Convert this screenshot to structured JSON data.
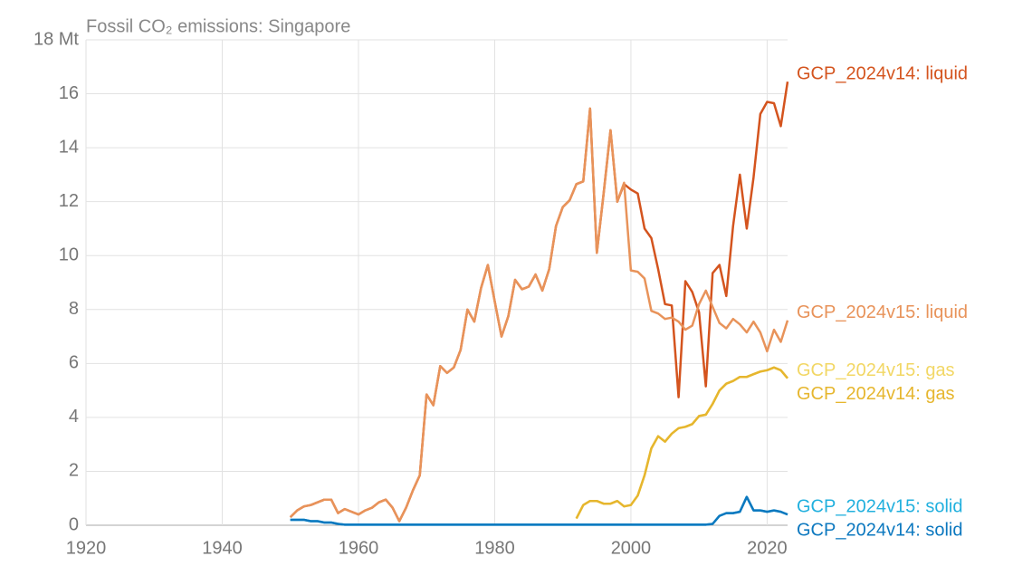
{
  "chart_data": {
    "type": "line",
    "title": "Fossil CO₂ emissions: Singapore",
    "xlim": [
      1920,
      2023
    ],
    "xticks": [
      1920,
      1940,
      1960,
      1980,
      2000,
      2020
    ],
    "ylim": [
      0,
      18
    ],
    "yticks": [
      0,
      2,
      4,
      6,
      8,
      10,
      12,
      14,
      16,
      {
        "value": 18,
        "label": "18 Mt"
      }
    ],
    "grid": true,
    "x": [
      1950,
      1951,
      1952,
      1953,
      1954,
      1955,
      1956,
      1957,
      1958,
      1959,
      1960,
      1961,
      1962,
      1963,
      1964,
      1965,
      1966,
      1967,
      1968,
      1969,
      1970,
      1971,
      1972,
      1973,
      1974,
      1975,
      1976,
      1977,
      1978,
      1979,
      1980,
      1981,
      1982,
      1983,
      1984,
      1985,
      1986,
      1987,
      1988,
      1989,
      1990,
      1991,
      1992,
      1993,
      1994,
      1995,
      1996,
      1997,
      1998,
      1999,
      2000,
      2001,
      2002,
      2003,
      2004,
      2005,
      2006,
      2007,
      2008,
      2009,
      2010,
      2011,
      2012,
      2013,
      2014,
      2015,
      2016,
      2017,
      2018,
      2019,
      2020,
      2021,
      2022,
      2023
    ],
    "series": [
      {
        "name": "GCP_2024v14: liquid",
        "color": "#d4541e",
        "values": [
          0.3,
          0.55,
          0.7,
          0.75,
          0.85,
          0.95,
          0.95,
          0.45,
          0.6,
          0.5,
          0.4,
          0.55,
          0.65,
          0.85,
          0.95,
          0.65,
          0.15,
          0.65,
          1.3,
          1.85,
          4.85,
          4.45,
          5.9,
          5.65,
          5.85,
          6.5,
          8.0,
          7.55,
          8.8,
          9.65,
          8.3,
          7.0,
          7.75,
          9.1,
          8.75,
          8.85,
          9.3,
          8.7,
          9.5,
          11.1,
          11.8,
          12.05,
          12.65,
          12.75,
          15.45,
          10.1,
          12.3,
          14.65,
          12.0,
          12.65,
          12.45,
          12.3,
          11.0,
          10.65,
          9.5,
          8.2,
          8.15,
          4.75,
          9.05,
          8.65,
          7.9,
          5.15,
          9.35,
          9.65,
          8.5,
          11.1,
          13.0,
          11.0,
          12.9,
          15.25,
          15.7,
          15.65,
          14.8,
          16.45
        ]
      },
      {
        "name": "GCP_2024v15: liquid",
        "color": "#e8935a",
        "values": [
          0.3,
          0.55,
          0.7,
          0.75,
          0.85,
          0.95,
          0.95,
          0.45,
          0.6,
          0.5,
          0.4,
          0.55,
          0.65,
          0.85,
          0.95,
          0.65,
          0.15,
          0.65,
          1.3,
          1.85,
          4.85,
          4.45,
          5.9,
          5.65,
          5.85,
          6.5,
          8.0,
          7.55,
          8.8,
          9.65,
          8.3,
          7.0,
          7.75,
          9.1,
          8.75,
          8.85,
          9.3,
          8.7,
          9.5,
          11.1,
          11.8,
          12.05,
          12.65,
          12.75,
          15.45,
          10.1,
          12.3,
          14.65,
          12.0,
          12.7,
          9.45,
          9.4,
          9.15,
          7.95,
          7.85,
          7.65,
          7.7,
          7.55,
          7.25,
          7.4,
          8.2,
          8.7,
          8.1,
          7.5,
          7.3,
          7.65,
          7.45,
          7.15,
          7.55,
          7.15,
          6.45,
          7.25,
          6.8,
          7.6
        ]
      },
      {
        "name": "GCP_2024v15: gas",
        "color": "#f2d765",
        "values": [
          null,
          null,
          null,
          null,
          null,
          null,
          null,
          null,
          null,
          null,
          null,
          null,
          null,
          null,
          null,
          null,
          null,
          null,
          null,
          null,
          null,
          null,
          null,
          null,
          null,
          null,
          null,
          null,
          null,
          null,
          null,
          null,
          null,
          null,
          null,
          null,
          null,
          null,
          null,
          null,
          null,
          null,
          0.25,
          0.75,
          0.9,
          0.9,
          0.8,
          0.8,
          0.9,
          0.7,
          0.75,
          1.1,
          1.85,
          2.85,
          3.3,
          3.1,
          3.4,
          3.6,
          3.65,
          3.75,
          4.05,
          4.1,
          4.5,
          5.0,
          5.25,
          5.35,
          5.5,
          5.5,
          5.6,
          5.7,
          5.75,
          5.85,
          5.75,
          5.45
        ]
      },
      {
        "name": "GCP_2024v14: gas",
        "color": "#e6b62e",
        "values": [
          null,
          null,
          null,
          null,
          null,
          null,
          null,
          null,
          null,
          null,
          null,
          null,
          null,
          null,
          null,
          null,
          null,
          null,
          null,
          null,
          null,
          null,
          null,
          null,
          null,
          null,
          null,
          null,
          null,
          null,
          null,
          null,
          null,
          null,
          null,
          null,
          null,
          null,
          null,
          null,
          null,
          null,
          0.25,
          0.75,
          0.9,
          0.9,
          0.8,
          0.8,
          0.9,
          0.7,
          0.75,
          1.1,
          1.85,
          2.85,
          3.3,
          3.1,
          3.4,
          3.6,
          3.65,
          3.75,
          4.05,
          4.1,
          4.5,
          5.0,
          5.25,
          5.35,
          5.5,
          5.5,
          5.6,
          5.7,
          5.75,
          5.85,
          5.75,
          5.45
        ]
      },
      {
        "name": "GCP_2024v15: solid",
        "color": "#21b0de",
        "values": [
          0.2,
          0.2,
          0.2,
          0.15,
          0.15,
          0.1,
          0.1,
          0.05,
          0.02,
          0.02,
          0.02,
          0.02,
          0.02,
          0.02,
          0.02,
          0.02,
          0.02,
          0.02,
          0.02,
          0.02,
          0.02,
          0.02,
          0.02,
          0.02,
          0.02,
          0.02,
          0.02,
          0.02,
          0.02,
          0.02,
          0.02,
          0.02,
          0.02,
          0.02,
          0.02,
          0.02,
          0.02,
          0.02,
          0.02,
          0.02,
          0.02,
          0.02,
          0.02,
          0.02,
          0.02,
          0.02,
          0.02,
          0.02,
          0.02,
          0.02,
          0.02,
          0.02,
          0.02,
          0.02,
          0.02,
          0.02,
          0.02,
          0.02,
          0.02,
          0.02,
          0.02,
          0.02,
          0.05,
          0.35,
          0.45,
          0.45,
          0.5,
          1.05,
          0.55,
          0.55,
          0.5,
          0.55,
          0.5,
          0.4
        ]
      },
      {
        "name": "GCP_2024v14: solid",
        "color": "#0c78bf",
        "values": [
          0.2,
          0.2,
          0.2,
          0.15,
          0.15,
          0.1,
          0.1,
          0.05,
          0.02,
          0.02,
          0.02,
          0.02,
          0.02,
          0.02,
          0.02,
          0.02,
          0.02,
          0.02,
          0.02,
          0.02,
          0.02,
          0.02,
          0.02,
          0.02,
          0.02,
          0.02,
          0.02,
          0.02,
          0.02,
          0.02,
          0.02,
          0.02,
          0.02,
          0.02,
          0.02,
          0.02,
          0.02,
          0.02,
          0.02,
          0.02,
          0.02,
          0.02,
          0.02,
          0.02,
          0.02,
          0.02,
          0.02,
          0.02,
          0.02,
          0.02,
          0.02,
          0.02,
          0.02,
          0.02,
          0.02,
          0.02,
          0.02,
          0.02,
          0.02,
          0.02,
          0.02,
          0.02,
          0.05,
          0.35,
          0.45,
          0.45,
          0.5,
          1.05,
          0.55,
          0.55,
          0.5,
          0.55,
          0.5,
          0.4
        ]
      }
    ]
  }
}
